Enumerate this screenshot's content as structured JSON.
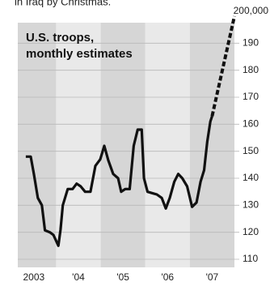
{
  "chart_data": {
    "type": "line",
    "caption_top": "in Iraq by Christmas.",
    "title": [
      "U.S. troops,",
      "monthly estimates"
    ],
    "series": [
      {
        "color": "#111111",
        "dashed": false,
        "x": [
          2003.32,
          2003.43,
          2003.5,
          2003.59,
          2003.68,
          2003.75,
          2003.86,
          2003.94,
          2004.05,
          2004.1,
          2004.15,
          2004.26,
          2004.37,
          2004.46,
          2004.55,
          2004.65,
          2004.77,
          2004.88,
          2004.99,
          2005.08,
          2005.17,
          2005.28,
          2005.39,
          2005.46,
          2005.55,
          2005.65,
          2005.74,
          2005.83,
          2005.92,
          2005.97,
          2006.05,
          2006.15,
          2006.26,
          2006.37,
          2006.46,
          2006.55,
          2006.65,
          2006.74,
          2006.83,
          2006.94,
          2007.05,
          2007.15,
          2007.24,
          2007.32,
          2007.39,
          2007.46,
          2007.5
        ],
        "values": [
          148,
          148,
          141.6,
          132.7,
          130,
          120.7,
          120,
          119,
          115,
          121,
          130,
          136,
          136,
          138,
          137,
          135,
          135,
          144.6,
          147,
          152,
          146.7,
          141.6,
          140,
          135,
          136,
          136,
          152,
          158,
          158,
          140,
          135,
          134.5,
          134,
          132.7,
          128.8,
          132.7,
          138.7,
          141.6,
          140,
          137,
          129.4,
          131,
          138.7,
          143,
          153.6,
          161,
          163
        ]
      },
      {
        "color": "#111111",
        "dashed": true,
        "x": [
          2007.5,
          2008.0
        ],
        "values": [
          163,
          200
        ]
      }
    ],
    "xlim": [
      2003.14,
      2008
    ],
    "xticks": [
      {
        "value": 2003.5,
        "label": "2003"
      },
      {
        "value": 2004.5,
        "label": "'04"
      },
      {
        "value": 2005.5,
        "label": "'05"
      },
      {
        "value": 2006.5,
        "label": "'06"
      },
      {
        "value": 2007.5,
        "label": "'07"
      }
    ],
    "ylim": [
      107,
      200
    ],
    "yticks": [
      {
        "value": 200,
        "label": "200,000"
      },
      190,
      180,
      170,
      160,
      150,
      140,
      130,
      120,
      110
    ],
    "grid": true
  }
}
